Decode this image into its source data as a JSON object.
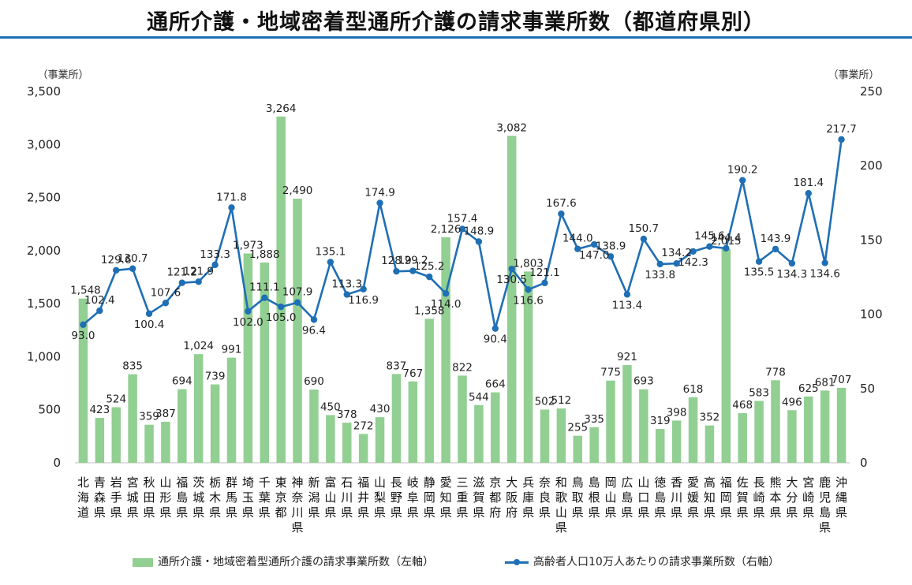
{
  "title": "通所介護・地域密着型通所介護の請求事業所数（都道府県別）",
  "chart_data": {
    "type": "bar+line",
    "left_axis_unit": "（事業所）",
    "right_axis_unit": "（事業所）",
    "ylim_left": [
      0,
      3500
    ],
    "yticks_left": [
      "0",
      "500",
      "1,000",
      "1,500",
      "2,000",
      "2,500",
      "3,000",
      "3,500"
    ],
    "ylim_right": [
      0,
      250
    ],
    "yticks_right": [
      "0",
      "50",
      "100",
      "150",
      "200",
      "250"
    ],
    "categories": [
      "北海道",
      "青森県",
      "岩手県",
      "宮城県",
      "秋田県",
      "山形県",
      "福島県",
      "茨城県",
      "栃木県",
      "群馬県",
      "埼玉県",
      "千葉県",
      "東京都",
      "神奈川県",
      "新潟県",
      "富山県",
      "石川県",
      "福井県",
      "山梨県",
      "長野県",
      "岐阜県",
      "静岡県",
      "愛知県",
      "三重県",
      "滋賀県",
      "京都府",
      "大阪府",
      "兵庫県",
      "奈良県",
      "和歌山県",
      "鳥取県",
      "島根県",
      "岡山県",
      "広島県",
      "山口県",
      "徳島県",
      "香川県",
      "愛媛県",
      "高知県",
      "福岡県",
      "佐賀県",
      "長崎県",
      "熊本県",
      "大分県",
      "宮崎県",
      "鹿児島県",
      "沖縄県"
    ],
    "series": [
      {
        "name": "通所介護・地域密着型通所介護の請求事業所数（左軸）",
        "type": "bar",
        "axis": "left",
        "color": "#92cf92",
        "values": [
          1548,
          423,
          524,
          835,
          359,
          387,
          694,
          1024,
          739,
          991,
          1973,
          1888,
          3264,
          2490,
          690,
          450,
          378,
          272,
          430,
          837,
          767,
          1358,
          2126,
          822,
          544,
          664,
          3082,
          1803,
          502,
          512,
          255,
          335,
          775,
          921,
          693,
          319,
          398,
          618,
          352,
          2015,
          468,
          583,
          778,
          496,
          625,
          681,
          707
        ],
        "labels": [
          "1,548",
          "423",
          "524",
          "835",
          "359",
          "387",
          "694",
          "1,024",
          "739",
          "991",
          "1,973",
          "1,888",
          "3,264",
          "2,490",
          "690",
          "450",
          "378",
          "272",
          "430",
          "837",
          "767",
          "1,358",
          "2,126",
          "822",
          "544",
          "664",
          "3,082",
          "1,803",
          "502",
          "512",
          "255",
          "335",
          "775",
          "921",
          "693",
          "319",
          "398",
          "618",
          "352",
          "2,015",
          "468",
          "583",
          "778",
          "496",
          "625",
          "681",
          "707"
        ]
      },
      {
        "name": "高齢者人口10万人あたりの請求事業所数（右軸）",
        "type": "line",
        "axis": "right",
        "color": "#1f6fb5",
        "values": [
          93.0,
          102.4,
          129.6,
          130.7,
          100.4,
          107.6,
          121.2,
          121.9,
          133.3,
          171.8,
          102.0,
          111.1,
          105.0,
          107.9,
          96.4,
          135.1,
          113.3,
          116.9,
          174.9,
          128.9,
          129.2,
          125.2,
          114.0,
          157.4,
          148.9,
          90.4,
          130.5,
          116.6,
          121.1,
          167.6,
          144.0,
          147.0,
          138.9,
          113.4,
          150.7,
          133.8,
          134.2,
          142.3,
          145.6,
          144.4,
          190.2,
          135.5,
          143.9,
          134.3,
          181.4,
          134.6,
          217.7
        ],
        "labels": [
          "93.0",
          "102.4",
          "129.6",
          "130.7",
          "100.4",
          "107.6",
          "121.2",
          "121.9",
          "133.3",
          "171.8",
          "102.0",
          "111.1",
          "105.0",
          "107.9",
          "96.4",
          "135.1",
          "113.3",
          "116.9",
          "174.9",
          "128.9",
          "129.2",
          "125.2",
          "114.0",
          "157.4",
          "148.9",
          "90.4",
          "130.5",
          "116.6",
          "121.1",
          "167.6",
          "144.0",
          "147.0",
          "138.9",
          "113.4",
          "150.7",
          "133.8",
          "134.2",
          "142.3",
          "145.6",
          "144.4",
          "190.2",
          "135.5",
          "143.9",
          "134.3",
          "181.4",
          "134.6",
          "217.7"
        ]
      }
    ],
    "legend_position": "bottom"
  },
  "legend": {
    "bar_label": "通所介護・地域密着型通所介護の請求事業所数（左軸）",
    "line_label": "高齢者人口10万人あたりの請求事業所数（右軸）"
  }
}
